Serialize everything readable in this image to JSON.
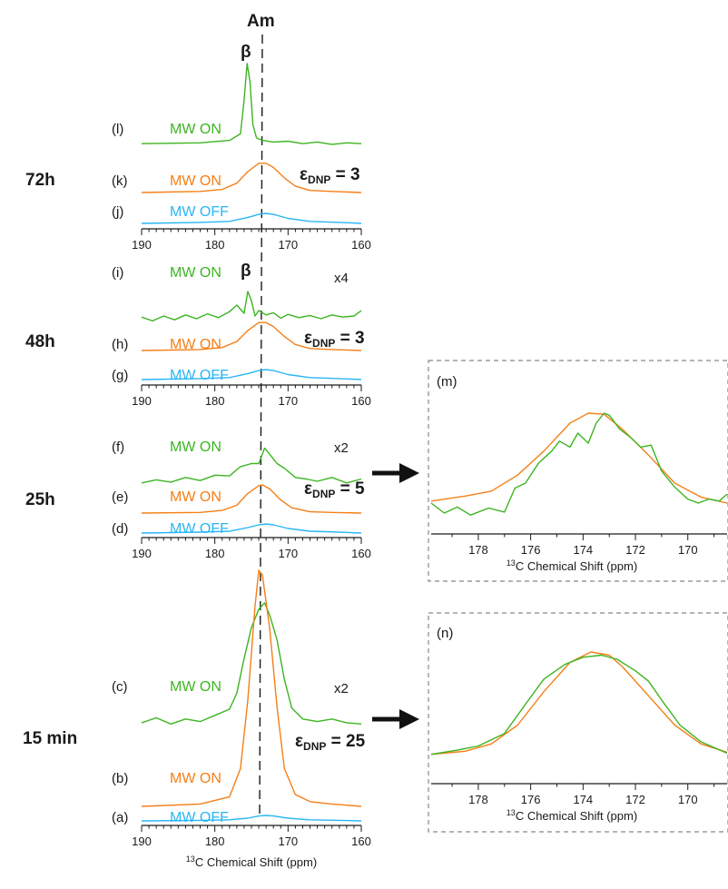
{
  "colors": {
    "mw_on_green": "#3cb521",
    "mw_on_orange": "#f57f17",
    "mw_off_blue": "#29b6f6",
    "axis": "#1a1a1a",
    "dash": "#999999"
  },
  "annotations": {
    "am_label": "Am",
    "beta_label": "β"
  },
  "arrow_icon": "right-arrow-icon",
  "chart_data": [
    {
      "type": "line",
      "id": "spectra_72h",
      "time_label": "72h",
      "x_range": [
        190,
        160
      ],
      "x_ticks": [
        190,
        180,
        170,
        160
      ],
      "enhancement": {
        "label_main": "ε",
        "label_sub": "DNP",
        "label_eq": "= 3"
      },
      "series": [
        {
          "letter": "(l)",
          "name": "MW ON",
          "color": "#3cb521",
          "x": [
            190,
            182,
            178,
            176.5,
            176,
            175.6,
            175.2,
            174.8,
            174.3,
            173.5,
            172,
            170,
            168,
            166,
            164,
            162,
            160
          ],
          "y": [
            0.02,
            0.03,
            0.06,
            0.14,
            0.55,
            1.0,
            0.78,
            0.25,
            0.09,
            0.06,
            0.04,
            0.05,
            0.02,
            0.04,
            0.01,
            0.03,
            0.02
          ]
        },
        {
          "letter": "(k)",
          "name": "MW ON",
          "color": "#f57f17",
          "x": [
            190,
            182,
            179,
            177,
            175.5,
            174,
            173,
            172,
            170.5,
            169,
            167,
            164,
            160
          ],
          "y": [
            0,
            0.01,
            0.03,
            0.09,
            0.2,
            0.28,
            0.28,
            0.24,
            0.14,
            0.06,
            0.02,
            0.01,
            0
          ]
        },
        {
          "letter": "(j)",
          "name": "MW OFF",
          "color": "#29b6f6",
          "x": [
            190,
            182,
            178,
            175.5,
            174,
            173,
            172,
            170,
            167,
            163,
            160
          ],
          "y": [
            0,
            0.01,
            0.02,
            0.06,
            0.09,
            0.1,
            0.09,
            0.05,
            0.02,
            0.01,
            0
          ]
        }
      ]
    },
    {
      "type": "line",
      "id": "spectra_48h",
      "time_label": "48h",
      "x_range": [
        190,
        160
      ],
      "x_ticks": [
        190,
        180,
        170,
        160
      ],
      "multiplier": "x4",
      "enhancement": {
        "label_main": "ε",
        "label_sub": "DNP",
        "label_eq": "= 3"
      },
      "series": [
        {
          "letter": "(i)",
          "name": "MW ON",
          "color": "#3cb521",
          "x": [
            190,
            188.5,
            187,
            185.5,
            184,
            182.5,
            181,
            179.5,
            178,
            177,
            176,
            175.5,
            175,
            174.5,
            174,
            173,
            172,
            171,
            170,
            168.5,
            167,
            165.5,
            164,
            162.5,
            161,
            160
          ],
          "y": [
            0.08,
            0.01,
            0.1,
            0.03,
            0.12,
            0.05,
            0.14,
            0.07,
            0.18,
            0.3,
            0.15,
            0.55,
            0.38,
            0.1,
            0.2,
            0.12,
            0.16,
            0.06,
            0.13,
            0.07,
            0.11,
            0.05,
            0.12,
            0.08,
            0.1,
            0.2
          ]
        },
        {
          "letter": "(h)",
          "name": "MW ON",
          "color": "#f57f17",
          "x": [
            190,
            182,
            179,
            177,
            175.5,
            174,
            173,
            172,
            170.5,
            169,
            167,
            164,
            160
          ],
          "y": [
            0,
            0.01,
            0.03,
            0.09,
            0.2,
            0.28,
            0.28,
            0.24,
            0.14,
            0.06,
            0.02,
            0.01,
            0
          ]
        },
        {
          "letter": "(g)",
          "name": "MW OFF",
          "color": "#29b6f6",
          "x": [
            190,
            182,
            178,
            175.5,
            174,
            173,
            172,
            170,
            167,
            163,
            160
          ],
          "y": [
            0,
            0.01,
            0.02,
            0.06,
            0.09,
            0.1,
            0.09,
            0.05,
            0.02,
            0.01,
            0
          ]
        }
      ]
    },
    {
      "type": "line",
      "id": "spectra_25h",
      "time_label": "25h",
      "x_range": [
        190,
        160
      ],
      "x_ticks": [
        190,
        180,
        170,
        160
      ],
      "multiplier": "x2",
      "enhancement": {
        "label_main": "ε",
        "label_sub": "DNP",
        "label_eq": "= 5"
      },
      "series": [
        {
          "letter": "(f)",
          "name": "MW ON",
          "color": "#3cb521",
          "x": [
            190,
            188,
            186,
            184,
            182,
            180,
            178,
            176.5,
            175,
            174,
            173.2,
            172.5,
            171.5,
            170.5,
            169,
            167.5,
            166,
            164,
            162,
            160
          ],
          "y": [
            0.05,
            0.09,
            0.06,
            0.12,
            0.08,
            0.15,
            0.14,
            0.26,
            0.3,
            0.3,
            0.5,
            0.42,
            0.3,
            0.24,
            0.12,
            0.1,
            0.07,
            0.12,
            0.05,
            0.1
          ]
        },
        {
          "letter": "(e)",
          "name": "MW ON",
          "color": "#f57f17",
          "x": [
            190,
            182,
            179,
            177,
            175.5,
            174,
            173.5,
            172.5,
            171,
            169.5,
            167,
            164,
            160
          ],
          "y": [
            0,
            0.01,
            0.04,
            0.12,
            0.3,
            0.42,
            0.43,
            0.37,
            0.2,
            0.08,
            0.02,
            0.01,
            0
          ]
        },
        {
          "letter": "(d)",
          "name": "MW OFF",
          "color": "#29b6f6",
          "x": [
            190,
            182,
            178,
            175.5,
            174,
            173,
            172,
            170,
            167,
            163,
            160
          ],
          "y": [
            0,
            0.01,
            0.02,
            0.06,
            0.09,
            0.1,
            0.09,
            0.05,
            0.02,
            0.01,
            0
          ]
        }
      ]
    },
    {
      "type": "line",
      "id": "spectra_15min",
      "time_label": "15 min",
      "x_range": [
        190,
        160
      ],
      "x_ticks": [
        190,
        180,
        170,
        160
      ],
      "x_title_prefix": "13",
      "x_title": "C Chemical Shift (ppm)",
      "multiplier": "x2",
      "enhancement": {
        "label_main": "ε",
        "label_sub": "DNP",
        "label_eq": "= 25"
      },
      "series": [
        {
          "letter": "(c)",
          "name": "MW ON",
          "color": "#3cb521",
          "x": [
            190,
            188,
            186,
            184,
            182,
            180,
            178,
            177,
            176,
            175,
            174,
            173.2,
            172.5,
            171.5,
            170.5,
            169.5,
            168,
            166,
            164,
            162,
            160
          ],
          "y": [
            0.03,
            0.07,
            0.02,
            0.06,
            0.04,
            0.09,
            0.14,
            0.27,
            0.55,
            0.8,
            0.95,
            1.0,
            0.9,
            0.7,
            0.38,
            0.15,
            0.06,
            0.04,
            0.06,
            0.03,
            0.02
          ]
        },
        {
          "letter": "(b)",
          "name": "MW ON",
          "color": "#f57f17",
          "x": [
            190,
            182,
            178,
            176.5,
            175.5,
            174.5,
            174,
            173.5,
            172.5,
            171.5,
            170.5,
            169,
            167,
            164,
            160
          ],
          "y": [
            0,
            0.01,
            0.04,
            0.16,
            0.45,
            0.85,
            1.0,
            0.98,
            0.75,
            0.42,
            0.16,
            0.05,
            0.02,
            0.01,
            0
          ]
        },
        {
          "letter": "(a)",
          "name": "MW OFF",
          "color": "#29b6f6",
          "x": [
            190,
            182,
            178,
            175.5,
            174,
            173,
            172,
            170,
            167,
            163,
            160
          ],
          "y": [
            0,
            0.01,
            0.02,
            0.05,
            0.09,
            0.1,
            0.09,
            0.05,
            0.02,
            0.01,
            0
          ]
        }
      ]
    },
    {
      "type": "line",
      "id": "zoom_m",
      "panel_label": "(m)",
      "x_range": [
        179.8,
        168.5
      ],
      "x_ticks": [
        178,
        176,
        174,
        172,
        170
      ],
      "x_title_prefix": "13",
      "x_title": "C Chemical Shift (ppm)",
      "series": [
        {
          "color": "#f57f17",
          "x": [
            179.8,
            178.5,
            177.5,
            176.5,
            175.5,
            174.5,
            173.8,
            173.2,
            172.5,
            171.5,
            170.5,
            169.5,
            168.5
          ],
          "y": [
            0.12,
            0.17,
            0.22,
            0.38,
            0.62,
            0.9,
            1.0,
            0.99,
            0.84,
            0.58,
            0.3,
            0.16,
            0.1
          ]
        },
        {
          "color": "#3cb521",
          "x": [
            179.8,
            179.3,
            178.8,
            178.3,
            177.6,
            177.0,
            176.6,
            176.2,
            175.7,
            175.2,
            174.9,
            174.5,
            174.2,
            173.8,
            173.5,
            173.2,
            173.0,
            172.6,
            172.2,
            171.8,
            171.4,
            171.0,
            170.5,
            170.0,
            169.6,
            169.2,
            168.8,
            168.5
          ],
          "y": [
            0.1,
            0.0,
            0.06,
            -0.02,
            0.05,
            0.01,
            0.25,
            0.3,
            0.5,
            0.62,
            0.72,
            0.66,
            0.8,
            0.7,
            0.9,
            1.0,
            0.98,
            0.84,
            0.76,
            0.66,
            0.68,
            0.42,
            0.26,
            0.14,
            0.1,
            0.14,
            0.12,
            0.19
          ]
        }
      ]
    },
    {
      "type": "line",
      "id": "zoom_n",
      "panel_label": "(n)",
      "x_range": [
        179.8,
        168.5
      ],
      "x_ticks": [
        178,
        176,
        174,
        172,
        170
      ],
      "x_title_prefix": "13",
      "x_title": "C Chemical Shift (ppm)",
      "series": [
        {
          "color": "#f57f17",
          "x": [
            179.8,
            178.5,
            177.5,
            176.5,
            175.5,
            174.5,
            173.7,
            173.0,
            172.5,
            171.5,
            170.5,
            169.5,
            168.5
          ],
          "y": [
            0.02,
            0.05,
            0.12,
            0.3,
            0.62,
            0.9,
            1.0,
            0.97,
            0.86,
            0.58,
            0.3,
            0.12,
            0.04
          ]
        },
        {
          "color": "#3cb521",
          "x": [
            179.8,
            178.8,
            178.0,
            177.0,
            176.2,
            175.5,
            174.7,
            174.0,
            173.3,
            172.7,
            172.0,
            171.5,
            171.0,
            170.3,
            169.5,
            168.5
          ],
          "y": [
            0.02,
            0.06,
            0.1,
            0.22,
            0.5,
            0.74,
            0.88,
            0.95,
            0.97,
            0.93,
            0.82,
            0.72,
            0.54,
            0.3,
            0.14,
            0.03
          ]
        }
      ]
    }
  ]
}
